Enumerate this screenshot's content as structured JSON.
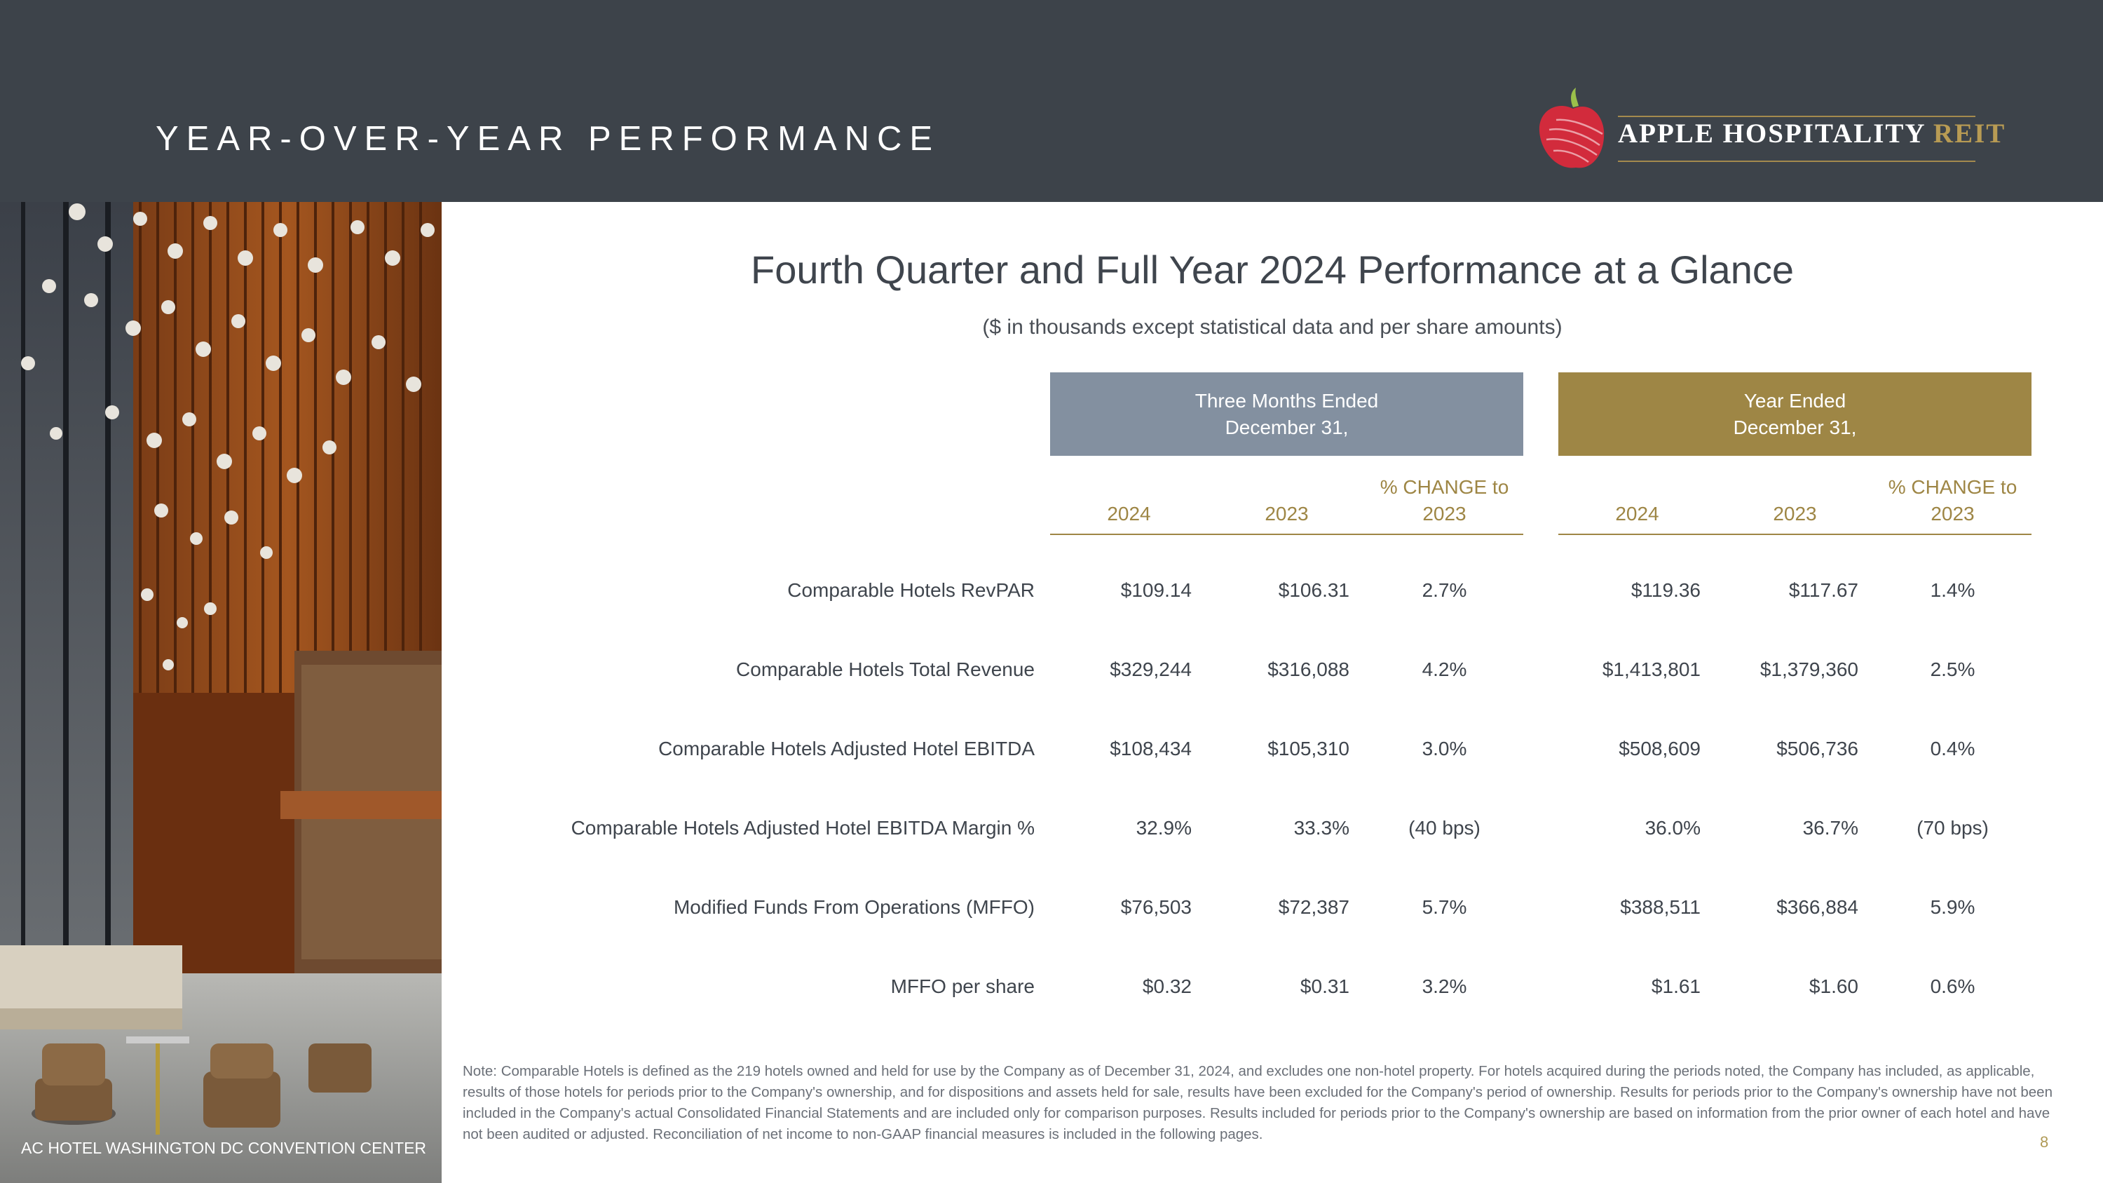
{
  "header": {
    "title": "YEAR-OVER-YEAR PERFORMANCE",
    "logo": {
      "name": "APPLE HOSPITALITY",
      "suffix": "REIT"
    }
  },
  "photo": {
    "caption": "AC HOTEL WASHINGTON DC CONVENTION CENTER"
  },
  "main": {
    "title": "Fourth Quarter and Full Year 2024 Performance at a Glance",
    "subtitle": "($ in thousands except statistical data and per share amounts)"
  },
  "table": {
    "periods": [
      {
        "line1": "Three Months Ended",
        "line2": "December 31,"
      },
      {
        "line1": "Year Ended",
        "line2": "December 31,"
      }
    ],
    "columns": [
      {
        "line1": "",
        "line2": "2024"
      },
      {
        "line1": "",
        "line2": "2023"
      },
      {
        "line1": "% CHANGE to",
        "line2": "2023"
      },
      {
        "line1": "",
        "line2": "2024"
      },
      {
        "line1": "",
        "line2": "2023"
      },
      {
        "line1": "% CHANGE to",
        "line2": "2023"
      }
    ],
    "rows": [
      {
        "label": "Comparable Hotels RevPAR",
        "values": [
          "$109.14",
          "$106.31",
          "2.7%",
          "$119.36",
          "$117.67",
          "1.4%"
        ]
      },
      {
        "label": "Comparable Hotels Total Revenue",
        "values": [
          "$329,244",
          "$316,088",
          "4.2%",
          "$1,413,801",
          "$1,379,360",
          "2.5%"
        ]
      },
      {
        "label": "Comparable Hotels Adjusted Hotel EBITDA",
        "values": [
          "$108,434",
          "$105,310",
          "3.0%",
          "$508,609",
          "$506,736",
          "0.4%"
        ]
      },
      {
        "label": "Comparable Hotels Adjusted Hotel EBITDA Margin %",
        "values": [
          "32.9%",
          "33.3%",
          "(40 bps)",
          "36.0%",
          "36.7%",
          "(70 bps)"
        ]
      },
      {
        "label": "Modified Funds From Operations (MFFO)",
        "values": [
          "$76,503",
          "$72,387",
          "5.7%",
          "$388,511",
          "$366,884",
          "5.9%"
        ]
      },
      {
        "label": "MFFO per share",
        "values": [
          "$0.32",
          "$0.31",
          "3.2%",
          "$1.61",
          "$1.60",
          "0.6%"
        ]
      }
    ]
  },
  "footer": {
    "note": "Note:  Comparable Hotels is defined as the 219 hotels owned and held for use by the Company as of December 31, 2024, and excludes one non-hotel property. For hotels acquired during the periods noted, the Company has included, as applicable, results of those hotels for periods prior to the Company's ownership, and for dispositions and assets held for sale, results have been excluded for the Company's period of ownership. Results for periods prior to the Company's ownership have not been included in the Company's actual Consolidated Financial Statements and are included only for comparison purposes. Results included for periods prior to the Company's ownership are based on information from the prior owner of each hotel and have not been audited or adjusted. Reconciliation of net income to non-GAAP financial measures is included in the following pages.",
    "page_number": "8"
  }
}
